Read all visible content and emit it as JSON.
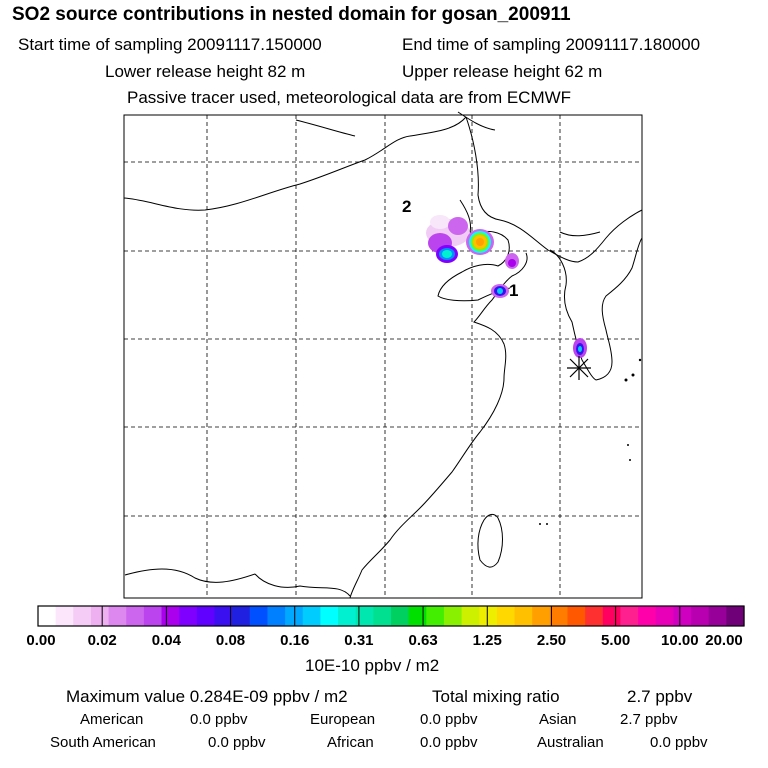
{
  "header": {
    "title": "SO2 source contributions in nested domain for gosan_200911",
    "start_time": "Start time of sampling 20091117.150000",
    "end_time": "End time of sampling 20091117.180000",
    "lower_height": "Lower release height   82 m",
    "upper_height": "Upper release height   62 m",
    "tracer_note": "Passive tracer used, meteorological data are from ECMWF"
  },
  "map": {
    "source_labels": [
      "2",
      "1"
    ]
  },
  "legend": {
    "ticks": [
      "0.00",
      "0.02",
      "0.04",
      "0.08",
      "0.16",
      "0.31",
      "0.63",
      "1.25",
      "2.50",
      "5.00",
      "10.00",
      "20.00"
    ],
    "unit": "10E-10 ppbv / m2",
    "colors": [
      "#ffffff",
      "#fbe6fb",
      "#f5ccf5",
      "#eeb0f0",
      "#dd88ee",
      "#cc66ee",
      "#bb44ee",
      "#aa00ee",
      "#8000ff",
      "#6000ff",
      "#3a10f0",
      "#2020e0",
      "#0050ff",
      "#0080ff",
      "#00a8ff",
      "#00cdfe",
      "#00ffff",
      "#00f0d0",
      "#00e8b0",
      "#00e090",
      "#00d060",
      "#00e000",
      "#44ee00",
      "#88f000",
      "#ccf000",
      "#eeee00",
      "#ffd800",
      "#ffc000",
      "#ffa000",
      "#ff7c00",
      "#ff5800",
      "#ff3030",
      "#ff0060",
      "#ff2090",
      "#ff00aa",
      "#e800b8",
      "#d000c0",
      "#b800b0",
      "#98009a",
      "#700078"
    ]
  },
  "stats": {
    "maximum": "Maximum value  0.284E-09 ppbv / m2",
    "total_label": "Total mixing ratio",
    "total_value": "2.7 ppbv",
    "row1": [
      {
        "label": "American",
        "value": "0.0 ppbv"
      },
      {
        "label": "European",
        "value": "0.0 ppbv"
      },
      {
        "label": "Asian",
        "value": "2.7 ppbv"
      }
    ],
    "row2": [
      {
        "label": "South American",
        "value": "0.0 ppbv"
      },
      {
        "label": "African",
        "value": "0.0 ppbv"
      },
      {
        "label": "Australian",
        "value": "0.0 ppbv"
      }
    ]
  }
}
